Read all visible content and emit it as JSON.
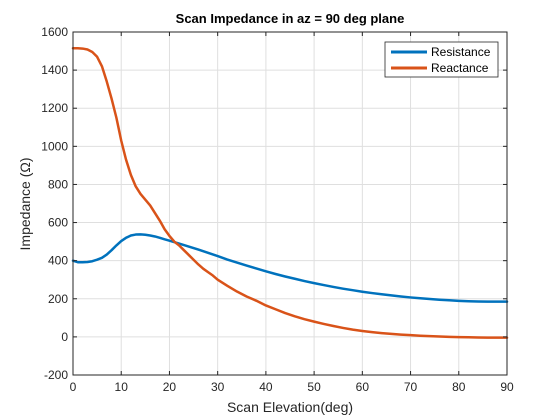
{
  "chart_data": {
    "type": "line",
    "title": "Scan Impedance in az = 90 deg plane",
    "xlabel": "Scan Elevation(deg)",
    "ylabel": "Impedance (Ω)",
    "xlim": [
      0,
      90
    ],
    "ylim": [
      -200,
      1600
    ],
    "xticks": [
      "0",
      "10",
      "20",
      "30",
      "40",
      "50",
      "60",
      "70",
      "80",
      "90"
    ],
    "yticks": [
      "-200",
      "0",
      "200",
      "400",
      "600",
      "800",
      "1000",
      "1200",
      "1400",
      "1600"
    ],
    "grid": true,
    "legend_position": "top-right",
    "series": [
      {
        "name": "Resistance",
        "color": "#0072BD",
        "x": [
          0,
          1,
          2,
          3,
          4,
          5,
          6,
          7,
          8,
          9,
          10,
          11,
          12,
          13,
          14,
          15,
          16,
          17,
          18,
          19,
          20,
          22,
          24,
          26,
          28,
          30,
          32,
          34,
          36,
          38,
          40,
          42,
          44,
          46,
          48,
          50,
          52,
          54,
          56,
          58,
          60,
          62,
          64,
          66,
          68,
          70,
          72,
          74,
          76,
          78,
          80,
          82,
          84,
          86,
          88,
          90
        ],
        "y": [
          400,
          392,
          392,
          393,
          397,
          405,
          415,
          432,
          455,
          480,
          503,
          520,
          532,
          537,
          538,
          536,
          532,
          527,
          520,
          512,
          505,
          490,
          474,
          458,
          441,
          424,
          406,
          390,
          374,
          359,
          344,
          330,
          317,
          305,
          293,
          282,
          272,
          262,
          253,
          245,
          237,
          230,
          224,
          218,
          212,
          207,
          203,
          199,
          195,
          192,
          189,
          187,
          186,
          185,
          185,
          185
        ]
      },
      {
        "name": "Reactance",
        "color": "#D95319",
        "x": [
          0,
          1,
          2,
          3,
          4,
          5,
          6,
          7,
          8,
          9,
          10,
          11,
          12,
          13,
          14,
          15,
          16,
          17,
          18,
          19,
          20,
          21,
          22,
          23,
          24,
          25,
          26,
          27,
          28,
          29,
          30,
          32,
          34,
          36,
          38,
          40,
          42,
          44,
          46,
          48,
          50,
          52,
          54,
          56,
          58,
          60,
          62,
          64,
          66,
          68,
          70,
          72,
          74,
          76,
          78,
          80,
          82,
          84,
          86,
          88,
          90
        ],
        "y": [
          1515,
          1515,
          1513,
          1508,
          1495,
          1470,
          1420,
          1340,
          1250,
          1150,
          1030,
          930,
          850,
          790,
          750,
          720,
          690,
          650,
          610,
          565,
          530,
          500,
          480,
          455,
          430,
          405,
          380,
          358,
          340,
          322,
          300,
          268,
          238,
          212,
          190,
          165,
          145,
          125,
          108,
          93,
          80,
          68,
          57,
          47,
          38,
          31,
          25,
          20,
          16,
          12,
          9,
          6,
          4,
          2,
          0,
          -1,
          -2,
          -3,
          -4,
          -4,
          -4
        ]
      }
    ]
  }
}
